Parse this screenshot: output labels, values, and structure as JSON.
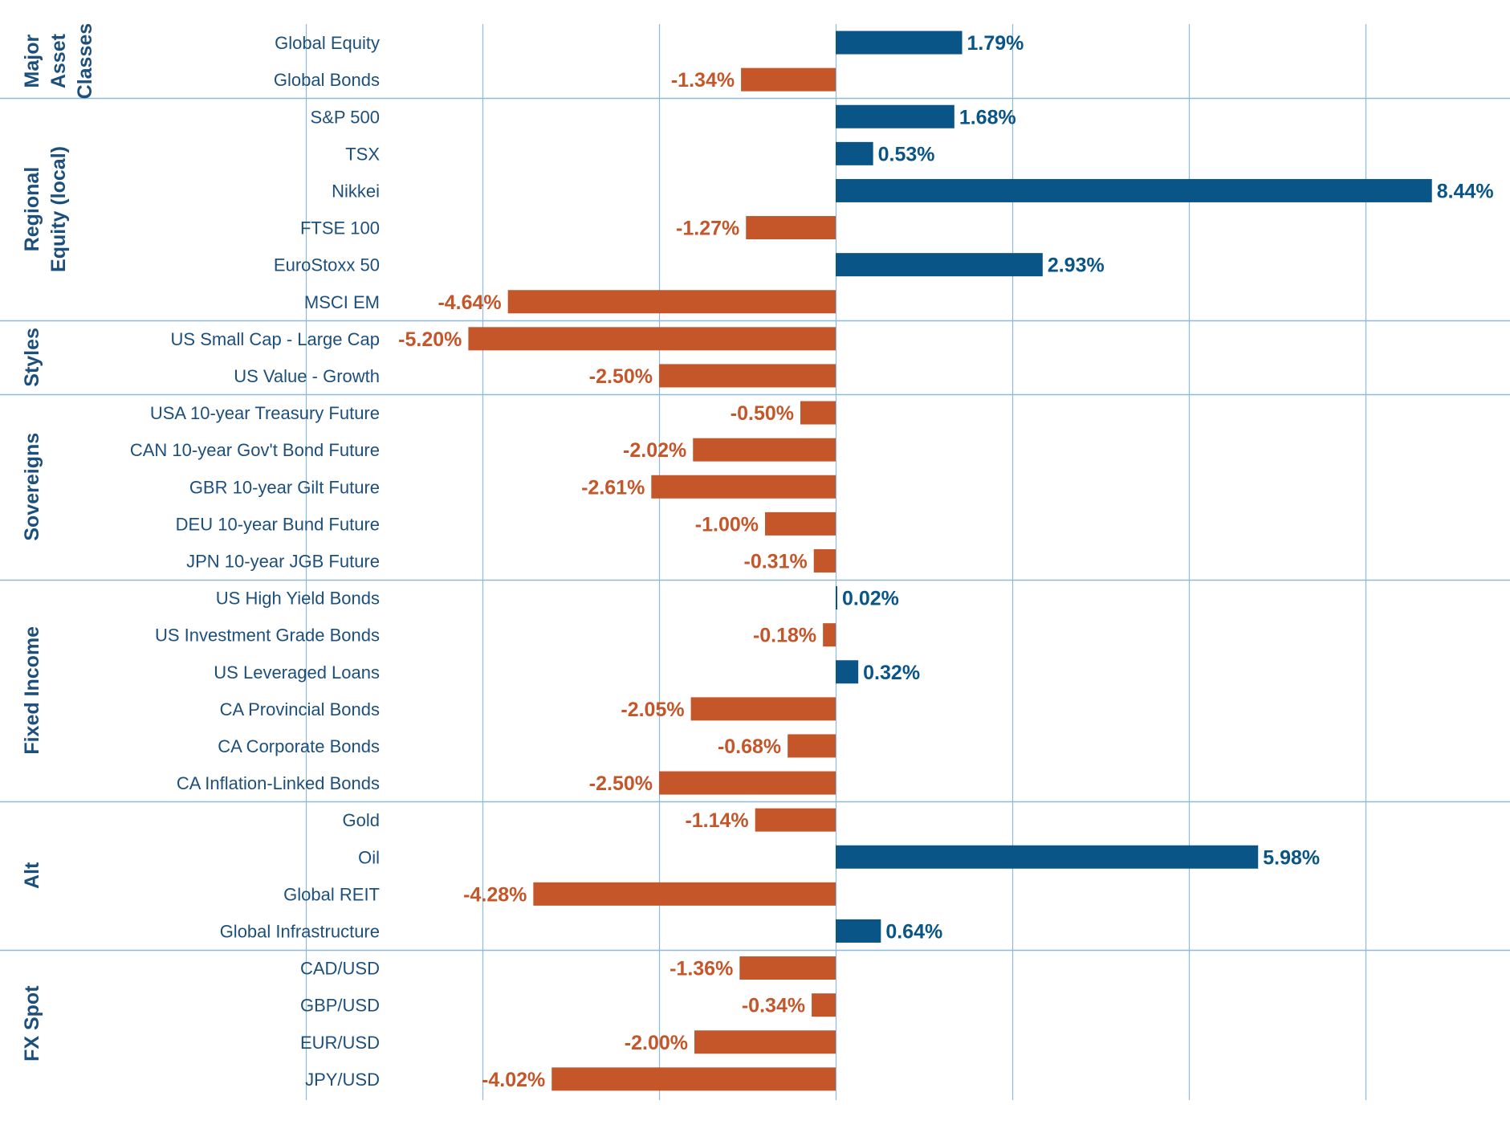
{
  "chart_data": {
    "type": "bar",
    "orientation": "horizontal",
    "units": "%",
    "xlim": [
      -20,
      8.8
    ],
    "grid": true,
    "colors": {
      "positive": "#0a5587",
      "negative": "#c4562a",
      "label": "#1d4f7c",
      "grid": "#8cb9dc"
    },
    "groups": [
      {
        "name": "Major Asset Classes",
        "label_lines": [
          "Major",
          "Asset",
          "Classes"
        ],
        "items": [
          {
            "label": "Global Equity",
            "value": 1.79,
            "text": "1.79%"
          },
          {
            "label": "Global Bonds",
            "value": -1.34,
            "text": "-1.34%"
          }
        ]
      },
      {
        "name": "Regional Equity (local)",
        "label_lines": [
          "Regional",
          "Equity (local)"
        ],
        "items": [
          {
            "label": "S&P 500",
            "value": 1.68,
            "text": "1.68%"
          },
          {
            "label": "TSX",
            "value": 0.53,
            "text": "0.53%"
          },
          {
            "label": "Nikkei",
            "value": 8.44,
            "text": "8.44%"
          },
          {
            "label": "FTSE 100",
            "value": -1.27,
            "text": "-1.27%"
          },
          {
            "label": "EuroStoxx 50",
            "value": 2.93,
            "text": "2.93%"
          },
          {
            "label": "MSCI EM",
            "value": -4.64,
            "text": "-4.64%"
          }
        ]
      },
      {
        "name": "Styles",
        "label_lines": [
          "Styles"
        ],
        "items": [
          {
            "label": "US Small Cap - Large Cap",
            "value": -5.2,
            "text": "-5.20%"
          },
          {
            "label": "US Value - Growth",
            "value": -2.5,
            "text": "-2.50%"
          }
        ]
      },
      {
        "name": "Sovereigns",
        "label_lines": [
          "Sovereigns"
        ],
        "items": [
          {
            "label": "USA 10-year Treasury Future",
            "value": -0.5,
            "text": "-0.50%"
          },
          {
            "label": "CAN 10-year Gov't Bond Future",
            "value": -2.02,
            "text": "-2.02%"
          },
          {
            "label": "GBR 10-year Gilt Future",
            "value": -2.61,
            "text": "-2.61%"
          },
          {
            "label": "DEU 10-year Bund Future",
            "value": -1.0,
            "text": "-1.00%"
          },
          {
            "label": "JPN 10-year JGB Future",
            "value": -0.31,
            "text": "-0.31%"
          }
        ]
      },
      {
        "name": "Fixed Income",
        "label_lines": [
          "Fixed Income"
        ],
        "items": [
          {
            "label": "US High Yield Bonds",
            "value": 0.02,
            "text": "0.02%"
          },
          {
            "label": "US Investment Grade Bonds",
            "value": -0.18,
            "text": "-0.18%"
          },
          {
            "label": "US Leveraged Loans",
            "value": 0.32,
            "text": "0.32%"
          },
          {
            "label": "CA Provincial Bonds",
            "value": -2.05,
            "text": "-2.05%"
          },
          {
            "label": "CA Corporate Bonds",
            "value": -0.68,
            "text": "-0.68%"
          },
          {
            "label": "CA Inflation-Linked Bonds",
            "value": -2.5,
            "text": "-2.50%"
          }
        ]
      },
      {
        "name": "Alt",
        "label_lines": [
          "Alt"
        ],
        "items": [
          {
            "label": "Gold",
            "value": -1.14,
            "text": "-1.14%"
          },
          {
            "label": "Oil",
            "value": 5.98,
            "text": "5.98%"
          },
          {
            "label": "Global REIT",
            "value": -4.28,
            "text": "-4.28%"
          },
          {
            "label": "Global Infrastructure",
            "value": 0.64,
            "text": "0.64%"
          }
        ]
      },
      {
        "name": "FX Spot",
        "label_lines": [
          "FX Spot"
        ],
        "items": [
          {
            "label": "CAD/USD",
            "value": -1.36,
            "text": "-1.36%"
          },
          {
            "label": "GBP/USD",
            "value": -0.34,
            "text": "-0.34%"
          },
          {
            "label": "EUR/USD",
            "value": -2.0,
            "text": "-2.00%"
          },
          {
            "label": "JPY/USD",
            "value": -4.02,
            "text": "-4.02%"
          }
        ]
      }
    ]
  }
}
